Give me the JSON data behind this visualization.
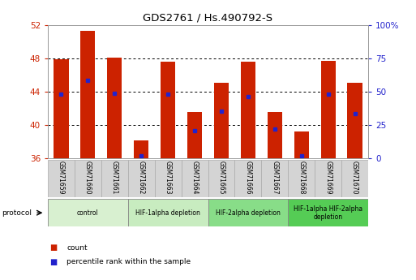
{
  "title": "GDS2761 / Hs.490792-S",
  "samples": [
    "GSM71659",
    "GSM71660",
    "GSM71661",
    "GSM71662",
    "GSM71663",
    "GSM71664",
    "GSM71665",
    "GSM71666",
    "GSM71667",
    "GSM71668",
    "GSM71669",
    "GSM71670"
  ],
  "count_values": [
    47.9,
    51.3,
    48.1,
    38.1,
    47.6,
    41.6,
    45.1,
    47.6,
    41.6,
    39.2,
    47.7,
    45.1
  ],
  "percentile_values": [
    43.7,
    45.4,
    43.8,
    36.3,
    43.7,
    39.3,
    41.7,
    43.4,
    39.5,
    36.3,
    43.7,
    41.4
  ],
  "ymin": 36,
  "ymax": 52,
  "yticks_left": [
    36,
    40,
    44,
    48,
    52
  ],
  "right_yticks_pct": [
    0,
    25,
    50,
    75,
    100
  ],
  "right_ytick_labels": [
    "0",
    "25",
    "50",
    "75",
    "100%"
  ],
  "bar_color": "#cc2200",
  "percentile_color": "#2222cc",
  "plot_bg": "#ffffff",
  "grid_color": "#000000",
  "protocols": [
    {
      "label": "control",
      "start": 0,
      "end": 3,
      "color": "#d8f0d0"
    },
    {
      "label": "HIF-1alpha depletion",
      "start": 3,
      "end": 6,
      "color": "#c8ecc0"
    },
    {
      "label": "HIF-2alpha depletion",
      "start": 6,
      "end": 9,
      "color": "#88dd88"
    },
    {
      "label": "HIF-1alpha HIF-2alpha\ndepletion",
      "start": 9,
      "end": 12,
      "color": "#55cc55"
    }
  ],
  "legend_count_label": "count",
  "legend_percentile_label": "percentile rank within the sample",
  "left_tick_color": "#cc2200",
  "right_tick_color": "#2222cc",
  "bar_width": 0.55,
  "sample_box_color": "#d4d4d4",
  "gridlines": [
    40,
    44,
    48
  ]
}
